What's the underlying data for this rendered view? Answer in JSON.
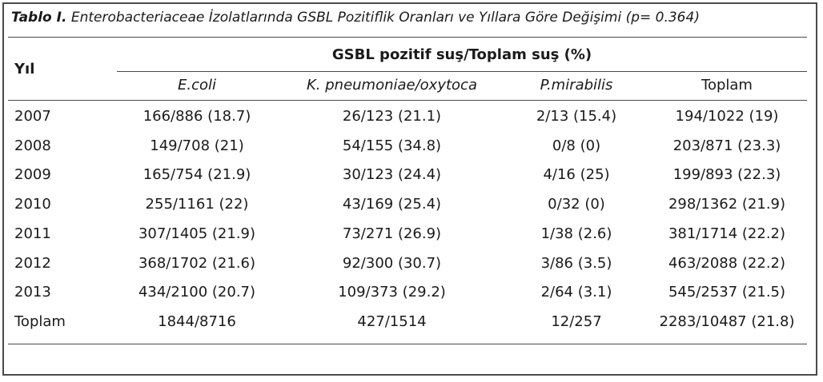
{
  "table": {
    "title_lead": "Tablo I.",
    "title_rest": " Enterobacteriaceae İzolatlarında GSBL Pozitiflik Oranları ve Yıllara Göre Değişimi (p= 0.364)",
    "header_year": "Yıl",
    "header_group": "GSBL pozitif suş/Toplam suş (%)",
    "col1": "E.coli",
    "col2": "K. pneumoniae/oxytoca",
    "col3": "P.mirabilis",
    "col4": "Toplam",
    "rows": [
      {
        "year": "2007",
        "c1": "166/886 (18.7)",
        "c2": "26/123 (21.1)",
        "c3": "2/13 (15.4)",
        "c4": "194/1022 (19)"
      },
      {
        "year": "2008",
        "c1": "149/708 (21)",
        "c2": "54/155 (34.8)",
        "c3": "0/8 (0)",
        "c4": "203/871 (23.3)"
      },
      {
        "year": "2009",
        "c1": "165/754 (21.9)",
        "c2": "30/123 (24.4)",
        "c3": "4/16 (25)",
        "c4": "199/893 (22.3)"
      },
      {
        "year": "2010",
        "c1": "255/1161 (22)",
        "c2": "43/169 (25.4)",
        "c3": "0/32 (0)",
        "c4": "298/1362 (21.9)"
      },
      {
        "year": "2011",
        "c1": "307/1405 (21.9)",
        "c2": "73/271 (26.9)",
        "c3": "1/38 (2.6)",
        "c4": "381/1714 (22.2)"
      },
      {
        "year": "2012",
        "c1": "368/1702 (21.6)",
        "c2": "92/300 (30.7)",
        "c3": "3/86 (3.5)",
        "c4": "463/2088 (22.2)"
      },
      {
        "year": "2013",
        "c1": "434/2100 (20.7)",
        "c2": "109/373 (29.2)",
        "c3": "2/64 (3.1)",
        "c4": "545/2537 (21.5)"
      },
      {
        "year": "Toplam",
        "c1": "1844/8716",
        "c2": "427/1514",
        "c3": "12/257",
        "c4": "2283/10487 (21.8)"
      }
    ]
  }
}
